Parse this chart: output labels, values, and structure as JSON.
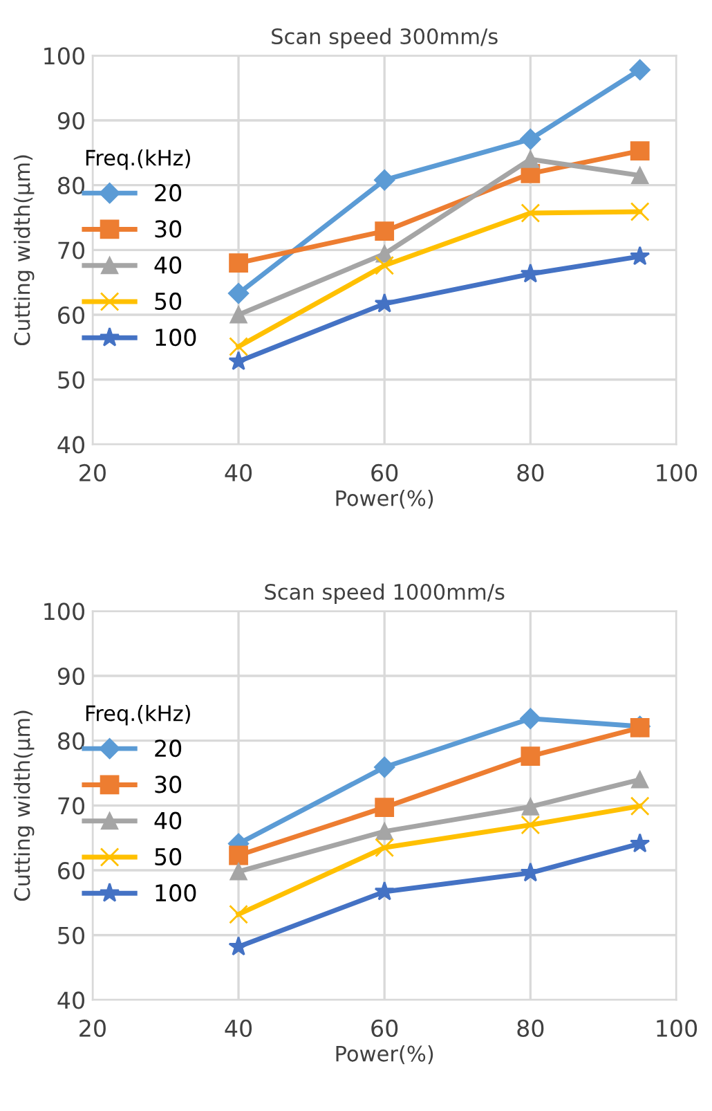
{
  "chart_data": [
    {
      "type": "line",
      "title": "Scan speed 300mm/s",
      "xlabel": "Power(%)",
      "ylabel": "Cutting width(μm)",
      "legend_title": "Freq.(kHz)",
      "legend": "left",
      "grid": true,
      "xlim": [
        20,
        100
      ],
      "xticks": [
        20,
        40,
        60,
        80,
        100
      ],
      "ylim": [
        40,
        100
      ],
      "yticks": [
        40,
        50,
        60,
        70,
        80,
        90,
        100
      ],
      "x": [
        40,
        60,
        80,
        95
      ],
      "series": [
        {
          "name": "20",
          "color": "#5b9bd5",
          "marker": "diamond",
          "values": [
            63.3,
            80.8,
            87.1,
            97.8
          ]
        },
        {
          "name": "30",
          "color": "#ed7d31",
          "marker": "square",
          "values": [
            68,
            72.9,
            81.8,
            85.3
          ]
        },
        {
          "name": "40",
          "color": "#a5a5a5",
          "marker": "triangle",
          "values": [
            60,
            69.4,
            84,
            81.5
          ]
        },
        {
          "name": "50",
          "color": "#ffc000",
          "marker": "cross",
          "values": [
            55.1,
            67.6,
            75.7,
            75.9
          ]
        },
        {
          "name": "100",
          "color": "#4472c4",
          "marker": "star",
          "values": [
            52.8,
            61.7,
            66.3,
            69
          ]
        }
      ]
    },
    {
      "type": "line",
      "title": "Scan speed 1000mm/s",
      "xlabel": "Power(%)",
      "ylabel": "Cutting width(μm)",
      "legend_title": "Freq.(kHz)",
      "legend": "left",
      "grid": true,
      "xlim": [
        20,
        100
      ],
      "xticks": [
        20,
        40,
        60,
        80,
        100
      ],
      "ylim": [
        40,
        100
      ],
      "yticks": [
        40,
        50,
        60,
        70,
        80,
        90,
        100
      ],
      "x": [
        40,
        60,
        80,
        95
      ],
      "series": [
        {
          "name": "20",
          "color": "#5b9bd5",
          "marker": "diamond",
          "values": [
            64.1,
            75.9,
            83.4,
            82.2
          ]
        },
        {
          "name": "30",
          "color": "#ed7d31",
          "marker": "square",
          "values": [
            62.3,
            69.7,
            77.6,
            82
          ]
        },
        {
          "name": "40",
          "color": "#a5a5a5",
          "marker": "triangle",
          "values": [
            59.8,
            66,
            69.8,
            74
          ]
        },
        {
          "name": "50",
          "color": "#ffc000",
          "marker": "cross",
          "values": [
            53.2,
            63.5,
            67,
            69.9
          ]
        },
        {
          "name": "100",
          "color": "#4472c4",
          "marker": "star",
          "values": [
            48.2,
            56.7,
            59.6,
            64.1
          ]
        }
      ]
    }
  ]
}
